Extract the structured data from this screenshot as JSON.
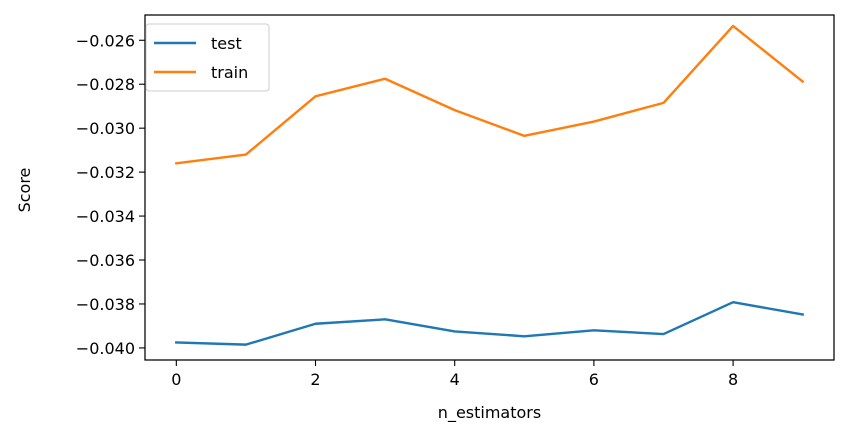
{
  "chart_data": {
    "type": "line",
    "xlabel": "n_estimators",
    "ylabel": "Score",
    "xlim": [
      -0.45,
      9.45
    ],
    "ylim": [
      -0.04055,
      -0.02485
    ],
    "xticks": [
      0,
      2,
      4,
      6,
      8
    ],
    "yticks": [
      -0.04,
      -0.038,
      -0.036,
      -0.034,
      -0.032,
      -0.03,
      -0.028,
      -0.026
    ],
    "ytick_labels": [
      "−0.040",
      "−0.038",
      "−0.036",
      "−0.034",
      "−0.032",
      "−0.030",
      "−0.028",
      "−0.026"
    ],
    "grid": false,
    "legend_position": "top-left",
    "x": [
      0,
      1,
      2,
      3,
      4,
      5,
      6,
      7,
      8,
      9
    ],
    "series": [
      {
        "name": "test",
        "color": "#1f77b4",
        "values": [
          -0.03975,
          -0.03985,
          -0.0389,
          -0.0387,
          -0.03925,
          -0.03947,
          -0.0392,
          -0.03937,
          -0.03792,
          -0.03848
        ]
      },
      {
        "name": "train",
        "color": "#ff7f0e",
        "values": [
          -0.0316,
          -0.0312,
          -0.02855,
          -0.02775,
          -0.02918,
          -0.03035,
          -0.0297,
          -0.02885,
          -0.02535,
          -0.02788
        ]
      }
    ]
  }
}
